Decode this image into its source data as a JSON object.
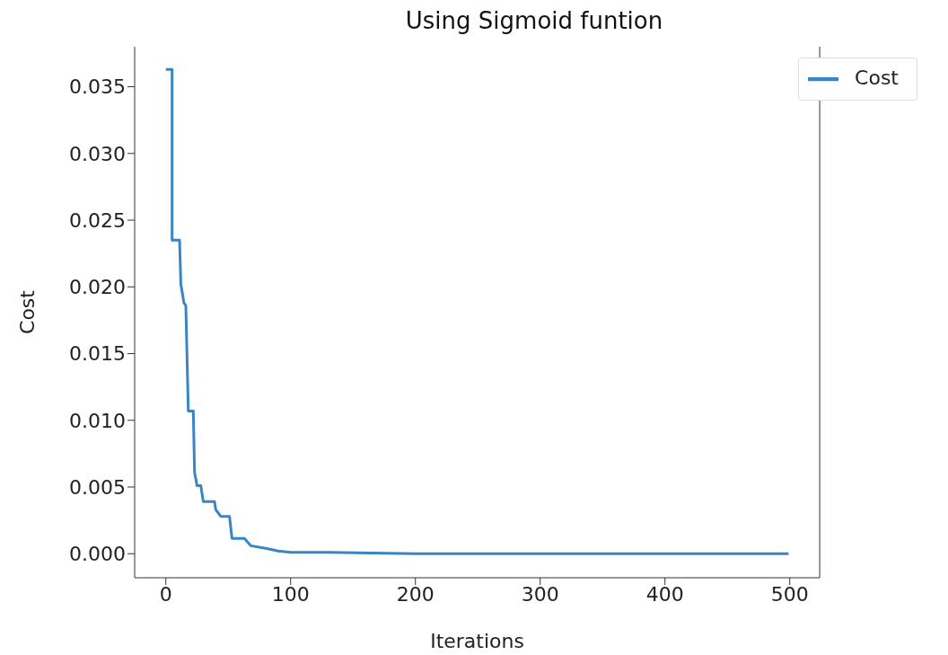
{
  "chart_data": {
    "type": "line",
    "title": "Using Sigmoid funtion",
    "xlabel": "Iterations",
    "ylabel": "Cost",
    "x": [
      0,
      5,
      5,
      11,
      12,
      14.5,
      16,
      18,
      22,
      23,
      25,
      28,
      30,
      39,
      40,
      44,
      51,
      53,
      63,
      68,
      80,
      90,
      100,
      130,
      200,
      300,
      400,
      499
    ],
    "series": [
      {
        "name": "Cost",
        "color": "#3a86c4",
        "values": [
          0.0363,
          0.0363,
          0.0235,
          0.0235,
          0.0202,
          0.0188,
          0.0186,
          0.0107,
          0.0107,
          0.0061,
          0.0051,
          0.0051,
          0.0039,
          0.0039,
          0.0033,
          0.0028,
          0.0028,
          0.00115,
          0.00115,
          0.0006,
          0.0004,
          0.0002,
          0.0001,
          0.0001,
          0,
          0,
          0,
          0
        ]
      }
    ],
    "xlim": [
      -25,
      524
    ],
    "ylim": [
      -0.0018,
      0.038
    ],
    "xticks": [
      0,
      100,
      200,
      300,
      400,
      500
    ],
    "yticks": [
      {
        "value": 0,
        "label": "0.000"
      },
      {
        "value": 0.005,
        "label": "0.005"
      },
      {
        "value": 0.01,
        "label": "0.010"
      },
      {
        "value": 0.015,
        "label": "0.015"
      },
      {
        "value": 0.02,
        "label": "0.020"
      },
      {
        "value": 0.025,
        "label": "0.025"
      },
      {
        "value": 0.03,
        "label": "0.030"
      },
      {
        "value": 0.035,
        "label": "0.035"
      }
    ],
    "grid": false,
    "legend": "top right",
    "marker": "none",
    "line_style": "solid"
  }
}
